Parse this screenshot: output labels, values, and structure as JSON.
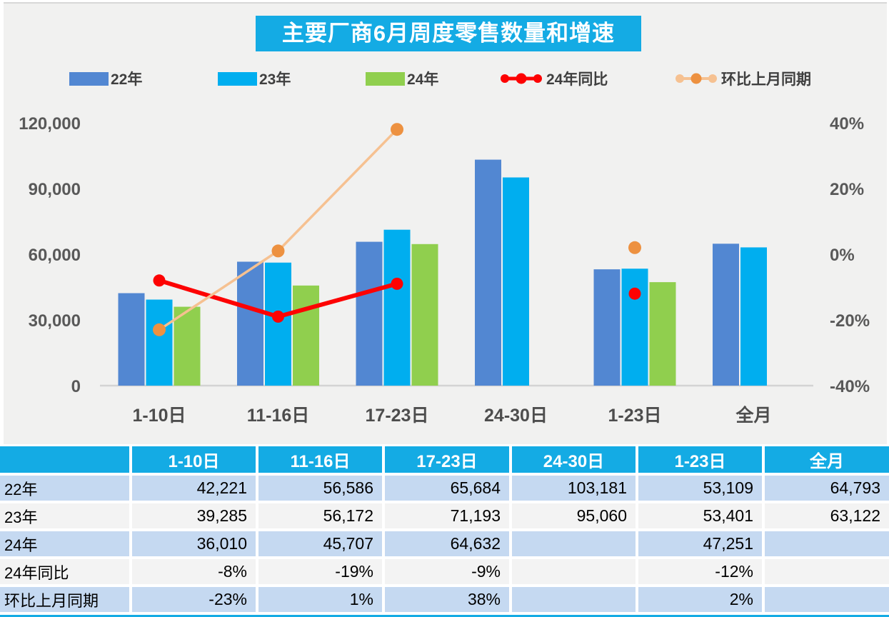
{
  "title": "主要厂商6月周度零售数量和增速",
  "colors": {
    "accent_cyan": "#14ABE4",
    "bar_22": "#5287D2",
    "bar_23": "#00AEEF",
    "bar_24": "#90CF4E",
    "line_yoy": "#FD0202",
    "line_mom": "#F6C191",
    "dot_mom": "#ED9140",
    "row_blue": "#C5D9F1",
    "row_white": "#F3F3F3",
    "axis_text": "#595959",
    "panel_bg": "#F1F1F0"
  },
  "legend": [
    {
      "label": "22年",
      "type": "square",
      "color": "#5287D2"
    },
    {
      "label": "23年",
      "type": "square",
      "color": "#00AEEF"
    },
    {
      "label": "24年",
      "type": "square",
      "color": "#90CF4E"
    },
    {
      "label": "24年同比",
      "type": "line",
      "color": "#FD0202",
      "marker_color": "#FD0202"
    },
    {
      "label": "环比上月同期",
      "type": "line",
      "color": "#F6C191",
      "marker_color": "#ED9140"
    }
  ],
  "chart_data": {
    "type": "combo-bar-line",
    "title": "主要厂商6月周度零售数量和增速",
    "categories": [
      "1-10日",
      "11-16日",
      "17-23日",
      "24-30日",
      "1-23日",
      "全月"
    ],
    "series": [
      {
        "name": "22年",
        "type": "bar",
        "color": "#5287D2",
        "values": [
          42221,
          56586,
          65684,
          103181,
          53109,
          64793
        ]
      },
      {
        "name": "23年",
        "type": "bar",
        "color": "#00AEEF",
        "values": [
          39285,
          56172,
          71193,
          95060,
          53401,
          63122
        ]
      },
      {
        "name": "24年",
        "type": "bar",
        "color": "#90CF4E",
        "values": [
          36010,
          45707,
          64632,
          null,
          47251,
          null
        ]
      },
      {
        "name": "24年同比",
        "type": "line",
        "axis": "right",
        "color": "#FD0202",
        "marker_color": "#FD0202",
        "values": [
          -8,
          -19,
          -9,
          null,
          -12,
          null
        ]
      },
      {
        "name": "环比上月同期",
        "type": "line",
        "axis": "right",
        "color": "#F6C191",
        "marker_color": "#ED9140",
        "values": [
          -23,
          1,
          38,
          null,
          2,
          null
        ]
      }
    ],
    "left_axis": {
      "min": 0,
      "max": 120000,
      "ticks": [
        "0",
        "30,000",
        "60,000",
        "90,000",
        "120,000"
      ],
      "tick_values": [
        0,
        30000,
        60000,
        90000,
        120000
      ]
    },
    "right_axis": {
      "min": -40,
      "max": 40,
      "unit": "%",
      "ticks": [
        "-40%",
        "-20%",
        "0%",
        "20%",
        "40%"
      ],
      "tick_values": [
        -40,
        -20,
        0,
        20,
        40
      ]
    },
    "grid": false,
    "legend_position": "top"
  },
  "table": {
    "corner": "",
    "headers": [
      "1-10日",
      "11-16日",
      "17-23日",
      "24-30日",
      "1-23日",
      "全月"
    ],
    "rows": [
      {
        "label": "22年",
        "cells": [
          "42,221",
          "56,586",
          "65,684",
          "103,181",
          "53,109",
          "64,793"
        ]
      },
      {
        "label": "23年",
        "cells": [
          "39,285",
          "56,172",
          "71,193",
          "95,060",
          "53,401",
          "63,122"
        ]
      },
      {
        "label": "24年",
        "cells": [
          "36,010",
          "45,707",
          "64,632",
          "",
          "47,251",
          ""
        ]
      },
      {
        "label": "24年同比",
        "cells": [
          "-8%",
          "-19%",
          "-9%",
          "",
          "-12%",
          ""
        ]
      },
      {
        "label": "环比上月同期",
        "cells": [
          "-23%",
          "1%",
          "38%",
          "",
          "2%",
          ""
        ]
      }
    ]
  }
}
